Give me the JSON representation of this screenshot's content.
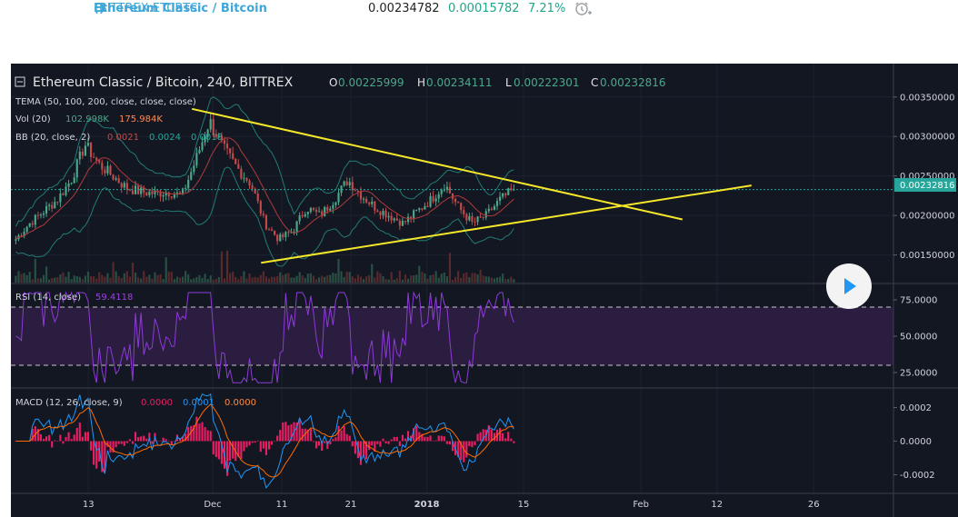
{
  "header": {
    "symbol": "Ethereum Classic / Bitcoin",
    "exchange": "BITTREX:ETCBTC",
    "last": "0.00234782",
    "change": "0.00015782",
    "change_pct": "7.21%",
    "alarm_icon": "alarm-clock-icon"
  },
  "main_pane": {
    "title": "Ethereum Classic / Bitcoin, 240, BITTREX",
    "ohlc": {
      "o_label": "O",
      "o": "0.00225999",
      "h_label": "H",
      "h": "0.00234111",
      "l_label": "L",
      "l": "0.00222301",
      "c_label": "C",
      "c": "0.00232816"
    },
    "tema_label": "TEMA (50, 100, 200, close, close, close)",
    "vol_label": "Vol (20)",
    "vol_value1": "102.998K",
    "vol_value2": "175.984K",
    "bb_label": "BB (20, close, 2)",
    "bb_value1": "0.0021",
    "bb_value2": "0.0024",
    "bb_value3": "0.0018",
    "price_ticks": [
      "0.00350000",
      "0.00300000",
      "0.00250000",
      "0.00200000",
      "0.00150000"
    ],
    "last_price_tag": "0.00232816"
  },
  "rsi_pane": {
    "label": "RSI (14, close)",
    "value": "59.4118",
    "ticks": [
      "75.0000",
      "50.0000",
      "25.0000"
    ]
  },
  "macd_pane": {
    "label": "MACD (12, 26, close, 9)",
    "value1": "0.0000",
    "value2": "0.0001",
    "value3": "0.0000",
    "ticks": [
      "0.0002",
      "0.0000",
      "-0.0002"
    ]
  },
  "time_axis": [
    "13",
    "Dec",
    "11",
    "21",
    "2018",
    "15",
    "Feb",
    "12",
    "26"
  ],
  "colors": {
    "background": "#131722",
    "trendline": "#f5e72a",
    "up": "#4ca88a",
    "down": "#c34a4a",
    "rsi": "#8e3ad8",
    "rsi_band": "#2a1d3f",
    "macd": "#2196f3",
    "signal": "#ff6d00",
    "histogram": "#e91e63",
    "last_price": "#26a69a",
    "header_blue": "#3ea7d8",
    "header_green": "#1fa58a"
  },
  "chart_data": {
    "type": "candlestick",
    "title": "Ethereum Classic / Bitcoin, 240, BITTREX",
    "timeframe": "240",
    "time_labels": [
      "13",
      "Dec",
      "11",
      "21",
      "2018",
      "15",
      "Feb",
      "12",
      "26"
    ],
    "price_range": [
      0.00115,
      0.0039
    ],
    "last_close": 0.00232816,
    "approx_close_series": [
      0.0017,
      0.0019,
      0.00205,
      0.0022,
      0.00245,
      0.0029,
      0.00265,
      0.0025,
      0.00235,
      0.0023,
      0.00228,
      0.0023,
      0.00225,
      0.0027,
      0.0032,
      0.00285,
      0.0026,
      0.0024,
      0.0019,
      0.0017,
      0.0018,
      0.0021,
      0.002,
      0.0022,
      0.00245,
      0.00225,
      0.0021,
      0.002,
      0.0019,
      0.00205,
      0.0022,
      0.0024,
      0.0021,
      0.0019,
      0.002,
      0.0022,
      0.00233
    ],
    "trendlines": [
      {
        "name": "descending resistance",
        "from": {
          "time": "Nov 28",
          "price": 0.00335
        },
        "to": {
          "time": "Feb 7",
          "price": 0.00195
        }
      },
      {
        "name": "ascending support",
        "from": {
          "time": "Dec 8",
          "price": 0.0014
        },
        "to": {
          "time": "Feb 17",
          "price": 0.00238
        }
      }
    ],
    "rsi": {
      "period": 14,
      "last": 59.4118,
      "overbought": 70,
      "oversold": 30,
      "range": [
        15,
        85
      ]
    },
    "macd": {
      "fast": 12,
      "slow": 26,
      "signal": 9,
      "range": [
        -0.0003,
        0.0003
      ]
    }
  }
}
